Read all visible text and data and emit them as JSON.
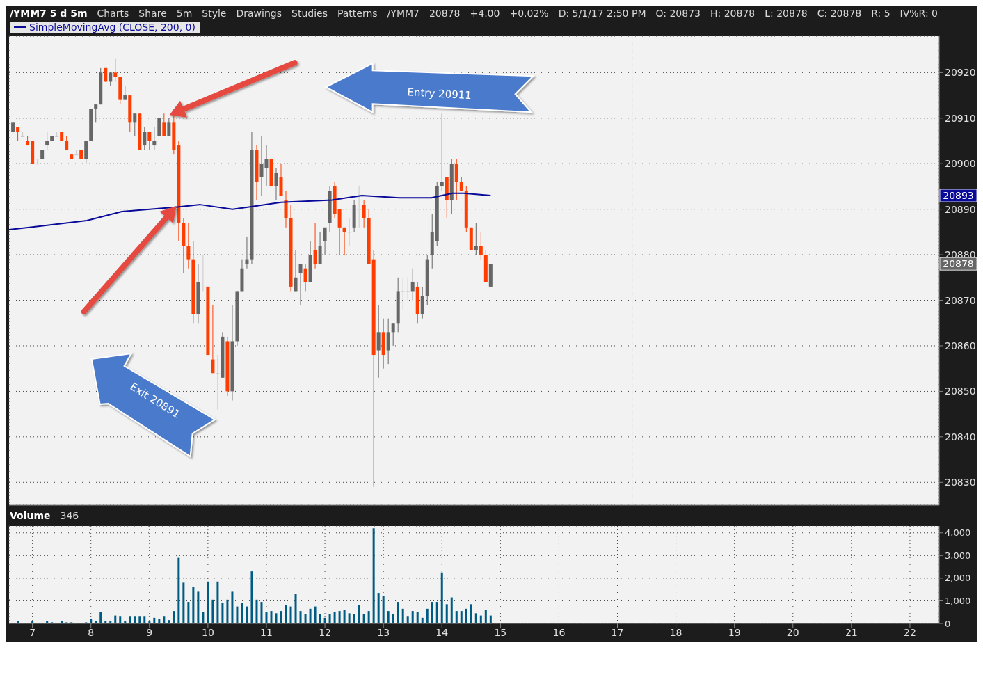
{
  "chart_data": [
    {
      "type": "candlestick",
      "title": "/YMM7 5 d 5m",
      "annotations": [
        "Charts",
        "Share",
        "5m",
        "Style",
        "Drawings",
        "Studies",
        "Patterns",
        "/YMM7",
        "20878",
        "+4.00",
        "+0.02%",
        "D: 5/1/17 2:50 PM",
        "O: 20873",
        "H: 20878",
        "L: 20878",
        "C: 20878",
        "R: 5",
        "IV%R: 0",
        "Entry 20911",
        "Exit 20891",
        "20893",
        "20878"
      ],
      "x": [
        6.6667,
        6.75,
        6.8333,
        6.9167,
        7,
        7.0833,
        7.1667,
        7.25,
        7.3333,
        7.4167,
        7.5,
        7.5833,
        7.6667,
        7.75,
        7.8333,
        7.9167,
        8,
        8.0833,
        8.1667,
        8.25,
        8.3333,
        8.4167,
        8.5,
        8.5833,
        8.6667,
        8.75,
        8.8333,
        8.9167,
        9,
        9.0833,
        9.1667,
        9.25,
        9.3333,
        9.4167,
        9.5,
        9.5833,
        9.6667,
        9.75,
        9.8333,
        9.9167,
        10,
        10.0833,
        10.1667,
        10.25,
        10.3333,
        10.4167,
        10.5,
        10.5833,
        10.6667,
        10.75,
        10.8333,
        10.9167,
        11,
        11.0833,
        11.1667,
        11.25,
        11.3333,
        11.4167,
        11.5,
        11.5833,
        11.6667,
        11.75,
        11.8333,
        11.9167,
        12,
        12.0833,
        12.1667,
        12.25,
        12.3333,
        12.4167,
        12.5,
        12.5833,
        12.6667,
        12.75,
        12.8333,
        12.9167,
        13,
        13.0833,
        13.1667,
        13.25,
        13.3333,
        13.4167,
        13.5,
        13.5833,
        13.6667,
        13.75,
        13.8333,
        13.9167,
        14,
        14.0833,
        14.1667,
        14.25,
        14.3333,
        14.4167,
        14.5,
        14.5833,
        14.6667,
        14.75,
        14.8333
      ],
      "ohlc": [
        [
          20907,
          20909,
          20907,
          20909
        ],
        [
          20908,
          20908,
          20905,
          20907
        ],
        [
          20906,
          20907,
          20906,
          20906
        ],
        [
          20905,
          20906,
          20904,
          20904
        ],
        [
          20905,
          20905,
          20900,
          20900
        ],
        [
          20900,
          20901,
          20900,
          20900
        ],
        [
          20901,
          20903,
          20901,
          20903
        ],
        [
          20904,
          20907,
          20903,
          20905
        ],
        [
          20905,
          20906,
          20905,
          20906
        ],
        [
          20906,
          20907,
          20906,
          20906
        ],
        [
          20907,
          20907,
          20905,
          20905
        ],
        [
          20905,
          20906,
          20903,
          20903
        ],
        [
          20902,
          20902,
          20901,
          20901
        ],
        [
          20902,
          20903,
          20902,
          20902
        ],
        [
          20903,
          20903,
          20901,
          20901
        ],
        [
          20901,
          20905,
          20900,
          20905
        ],
        [
          20905,
          20912,
          20905,
          20912
        ],
        [
          20912,
          20913,
          20909,
          20913
        ],
        [
          20913,
          20921,
          20913,
          20920
        ],
        [
          20921,
          20921,
          20918,
          20918
        ],
        [
          20918,
          20920,
          20917,
          20920
        ],
        [
          20920,
          20923,
          20918,
          20919
        ],
        [
          20919,
          20919,
          20913,
          20914
        ],
        [
          20914,
          20917,
          20914,
          20915
        ],
        [
          20915,
          20915,
          20907,
          20909
        ],
        [
          20909,
          20911,
          20906,
          20911
        ],
        [
          20911,
          20911,
          20903,
          20903
        ],
        [
          20904,
          20908,
          20903,
          20907
        ],
        [
          20907,
          20907,
          20903,
          20905
        ],
        [
          20904,
          20908,
          20903,
          20905
        ],
        [
          20906,
          20910,
          20906,
          20910
        ],
        [
          20909,
          20911,
          20906,
          20906
        ],
        [
          20906,
          20910,
          20906,
          20909
        ],
        [
          20909,
          20912,
          20902,
          20903
        ],
        [
          20904,
          20905,
          20883,
          20887
        ],
        [
          20887,
          20888,
          20876,
          20882
        ],
        [
          20882,
          20887,
          20877,
          20879
        ],
        [
          20879,
          20883,
          20865,
          20867
        ],
        [
          20867,
          20878,
          20865,
          20874
        ],
        [
          20873,
          20880,
          20872,
          20873
        ],
        [
          20873,
          20873,
          20858,
          20858
        ],
        [
          20857,
          20869,
          20854,
          20854
        ],
        [
          20854,
          20858,
          20846,
          20854
        ],
        [
          20853,
          20863,
          20853,
          20862
        ],
        [
          20861,
          20862,
          20849,
          20850
        ],
        [
          20850,
          20869,
          20848,
          20861
        ],
        [
          20861,
          20872,
          20860,
          20872
        ],
        [
          20872,
          20879,
          20872,
          20877
        ],
        [
          20878,
          20884,
          20877,
          20879
        ],
        [
          20879,
          20907,
          20878,
          20903
        ],
        [
          20903,
          20904,
          20892,
          20896
        ],
        [
          20897,
          20906,
          20893,
          20900
        ],
        [
          20899,
          20904,
          20895,
          20901
        ],
        [
          20901,
          20901,
          20895,
          20895
        ],
        [
          20895,
          20899,
          20892,
          20898
        ],
        [
          20897,
          20900,
          20893,
          20893
        ],
        [
          20892,
          20894,
          20886,
          20888
        ],
        [
          20888,
          20891,
          20872,
          20873
        ],
        [
          20872,
          20881,
          20872,
          20875
        ],
        [
          20876,
          20878,
          20869,
          20878
        ],
        [
          20877,
          20878,
          20872,
          20874
        ],
        [
          20874,
          20883,
          20874,
          20880
        ],
        [
          20881,
          20887,
          20877,
          20878
        ],
        [
          20878,
          20885,
          20878,
          20882
        ],
        [
          20883,
          20886,
          20880,
          20886
        ],
        [
          20887,
          20895,
          20885,
          20894
        ],
        [
          20895,
          20896,
          20888,
          20889
        ],
        [
          20890,
          20890,
          20880,
          20886
        ],
        [
          20886,
          20886,
          20880,
          20885
        ],
        [
          20885,
          20888,
          20882,
          20885
        ],
        [
          20886,
          20892,
          20885,
          20891
        ],
        [
          20891,
          20895,
          20886,
          20891
        ],
        [
          20891,
          20892,
          20886,
          20888
        ],
        [
          20888,
          20890,
          20878,
          20878
        ],
        [
          20879,
          20881,
          20829,
          20858
        ],
        [
          20859,
          20869,
          20853,
          20863
        ],
        [
          20863,
          20866,
          20855,
          20858
        ],
        [
          20859,
          20866,
          20856,
          20863
        ],
        [
          20863,
          20865,
          20860,
          20865
        ],
        [
          20865,
          20875,
          20863,
          20872
        ],
        [
          20872,
          20875,
          20868,
          20872
        ],
        [
          20872,
          20875,
          20870,
          20872
        ],
        [
          20872,
          20877,
          20870,
          20874
        ],
        [
          20873,
          20874,
          20865,
          20867
        ],
        [
          20867,
          20873,
          20866,
          20871
        ],
        [
          20871,
          20880,
          20869,
          20879
        ],
        [
          20880,
          20889,
          20877,
          20885
        ],
        [
          20883,
          20896,
          20882,
          20895
        ],
        [
          20895,
          20911,
          20894,
          20896
        ],
        [
          20897,
          20897,
          20888,
          20892
        ],
        [
          20892,
          20901,
          20889,
          20900
        ],
        [
          20900,
          20901,
          20892,
          20896
        ],
        [
          20896,
          20897,
          20894,
          20894
        ],
        [
          20894,
          20895,
          20885,
          20886
        ],
        [
          20886,
          20886,
          20881,
          20881
        ],
        [
          20881,
          20887,
          20880,
          20882
        ],
        [
          20882,
          20885,
          20879,
          20880
        ],
        [
          20880,
          20881,
          20874,
          20874
        ],
        [
          20873,
          20878,
          20873,
          20878
        ]
      ],
      "colors": [
        "#666666",
        "#ff3d00",
        "#c8c8c8",
        "#ff3d00",
        "#ff3d00",
        "#c8c8c8",
        "#666666",
        "#666666",
        "#666666",
        "#c8c8c8",
        "#ff3d00",
        "#ff3d00",
        "#ff3d00",
        "#c8c8c8",
        "#ff3d00",
        "#666666",
        "#666666",
        "#666666",
        "#666666",
        "#ff3d00",
        "#666666",
        "#ff3d00",
        "#ff3d00",
        "#666666",
        "#ff3d00",
        "#666666",
        "#ff3d00",
        "#666666",
        "#ff3d00",
        "#666666",
        "#666666",
        "#ff3d00",
        "#666666",
        "#ff3d00",
        "#ff3d00",
        "#ff3d00",
        "#ff3d00",
        "#ff3d00",
        "#666666",
        "#c8c8c8",
        "#ff3d00",
        "#ff3d00",
        "#c8c8c8",
        "#666666",
        "#ff3d00",
        "#666666",
        "#666666",
        "#666666",
        "#666666",
        "#666666",
        "#ff3d00",
        "#666666",
        "#666666",
        "#ff3d00",
        "#666666",
        "#ff3d00",
        "#ff3d00",
        "#ff3d00",
        "#666666",
        "#666666",
        "#ff3d00",
        "#666666",
        "#ff3d00",
        "#666666",
        "#666666",
        "#666666",
        "#ff3d00",
        "#ff3d00",
        "#ff3d00",
        "#c8c8c8",
        "#666666",
        "#c8c8c8",
        "#ff3d00",
        "#ff3d00",
        "#ff3d00",
        "#666666",
        "#ff3d00",
        "#666666",
        "#666666",
        "#666666",
        "#c8c8c8",
        "#c8c8c8",
        "#666666",
        "#ff3d00",
        "#666666",
        "#666666",
        "#666666",
        "#666666",
        "#666666",
        "#ff3d00",
        "#666666",
        "#ff3d00",
        "#ff3d00",
        "#ff3d00",
        "#ff3d00",
        "#666666",
        "#ff3d00",
        "#ff3d00",
        "#666666"
      ],
      "series": [
        {
          "type": "line",
          "name": "SimpleMovingAvg (CLOSE, 200, 0)",
          "color": "#0a0a9a",
          "x": [
            6.6,
            6.95,
            7.93,
            8.53,
            9.48,
            9.87,
            10.42,
            10.7,
            11.25,
            12.12,
            12.63,
            13.27,
            13.82,
            14.18,
            14.37,
            14.8333
          ],
          "values": [
            20885.5,
            20886,
            20887.5,
            20889.5,
            20890.5,
            20891,
            20890,
            20890.5,
            20891.5,
            20892,
            20893,
            20892.5,
            20892.5,
            20893.5,
            20893.5,
            20893
          ]
        }
      ],
      "xlim": [
        6.6,
        22.5
      ],
      "xticks": [
        7,
        8,
        9,
        10,
        11,
        12,
        13,
        14,
        15,
        16,
        17,
        18,
        19,
        20,
        21,
        22
      ],
      "ylim": [
        20825,
        20928
      ],
      "yticks": [
        20830,
        20840,
        20850,
        20860,
        20870,
        20880,
        20890,
        20900,
        20910,
        20920
      ],
      "ref_lines": [
        {
          "axis": "x",
          "value": 17.25,
          "color": "#333333",
          "line_style": "dashed"
        }
      ],
      "grid": true,
      "legend": "top",
      "tick_labels": "y"
    },
    {
      "type": "bar",
      "title": "Volume",
      "annotations": [
        "346"
      ],
      "x": [
        6.6667,
        6.75,
        6.8333,
        6.9167,
        7,
        7.0833,
        7.1667,
        7.25,
        7.3333,
        7.4167,
        7.5,
        7.5833,
        7.6667,
        7.75,
        7.8333,
        7.9167,
        8,
        8.0833,
        8.1667,
        8.25,
        8.3333,
        8.4167,
        8.5,
        8.5833,
        8.6667,
        8.75,
        8.8333,
        8.9167,
        9,
        9.0833,
        9.1667,
        9.25,
        9.3333,
        9.4167,
        9.5,
        9.5833,
        9.6667,
        9.75,
        9.8333,
        9.9167,
        10,
        10.0833,
        10.1667,
        10.25,
        10.3333,
        10.4167,
        10.5,
        10.5833,
        10.6667,
        10.75,
        10.8333,
        10.9167,
        11,
        11.0833,
        11.1667,
        11.25,
        11.3333,
        11.4167,
        11.5,
        11.5833,
        11.6667,
        11.75,
        11.8333,
        11.9167,
        12,
        12.0833,
        12.1667,
        12.25,
        12.3333,
        12.4167,
        12.5,
        12.5833,
        12.6667,
        12.75,
        12.8333,
        12.9167,
        13,
        13.0833,
        13.1667,
        13.25,
        13.3333,
        13.4167,
        13.5,
        13.5833,
        13.6667,
        13.75,
        13.8333,
        13.9167,
        14,
        14.0833,
        14.1667,
        14.25,
        14.3333,
        14.4167,
        14.5,
        14.5833,
        14.6667,
        14.75,
        14.8333
      ],
      "values": [
        0,
        100,
        0,
        0,
        100,
        0,
        0,
        100,
        50,
        0,
        100,
        50,
        50,
        0,
        0,
        50,
        200,
        100,
        500,
        100,
        100,
        350,
        300,
        100,
        300,
        300,
        300,
        300,
        100,
        250,
        200,
        300,
        150,
        550,
        2900,
        1800,
        950,
        1600,
        1400,
        500,
        1850,
        1050,
        1850,
        900,
        1050,
        1400,
        750,
        900,
        750,
        2300,
        1050,
        950,
        500,
        550,
        450,
        550,
        800,
        750,
        1300,
        550,
        400,
        650,
        750,
        400,
        250,
        400,
        500,
        550,
        600,
        450,
        400,
        800,
        400,
        550,
        4200,
        1350,
        1200,
        550,
        400,
        950,
        650,
        300,
        550,
        500,
        250,
        650,
        950,
        950,
        2250,
        850,
        1150,
        550,
        550,
        650,
        850,
        450,
        350,
        600,
        350
      ],
      "color": "#005b82",
      "xlim": [
        6.6,
        22.5
      ],
      "xticks": [
        7,
        8,
        9,
        10,
        11,
        12,
        13,
        14,
        15,
        16,
        17,
        18,
        19,
        20,
        21,
        22
      ],
      "ylim": [
        0,
        4300
      ],
      "yticks": [
        0,
        {
          "value": 1000,
          "label": "1,000"
        },
        {
          "value": 2000,
          "label": "2,000"
        },
        {
          "value": 3000,
          "label": "3,000"
        },
        {
          "value": 4000,
          "label": "4,000"
        }
      ],
      "grid": true
    }
  ]
}
